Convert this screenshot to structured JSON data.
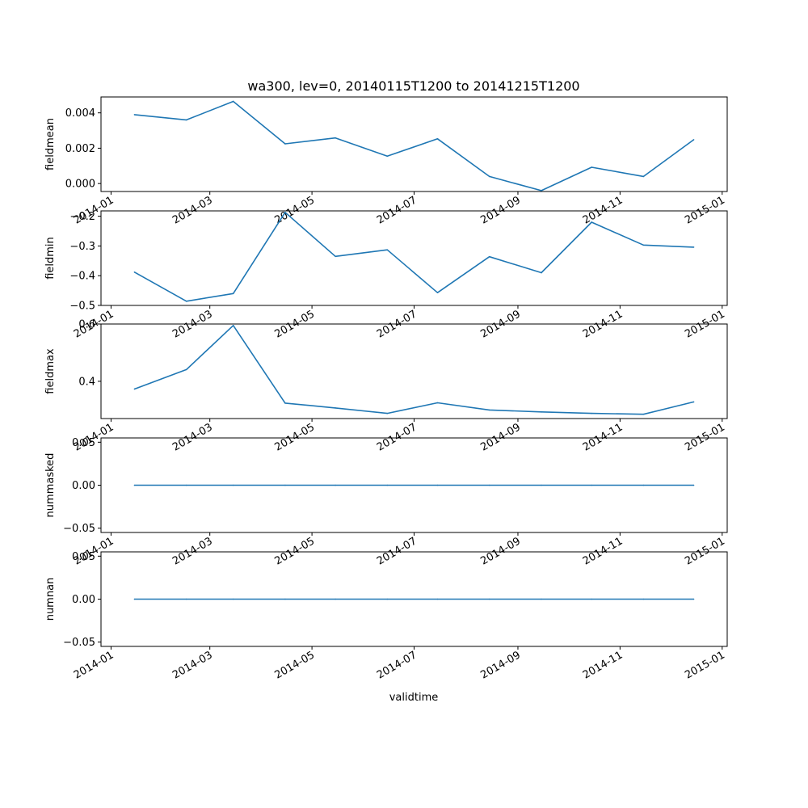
{
  "chart_data": {
    "type": "line",
    "title": "wa300, lev=0, 20140115T1200 to 20141215T1200",
    "xlabel": "validtime",
    "x_tick_labels": [
      "2014-01",
      "2014-03",
      "2014-05",
      "2014-07",
      "2014-09",
      "2014-11",
      "2015-01"
    ],
    "x": [
      "2014-01-15",
      "2014-02-15",
      "2014-03-15",
      "2014-04-15",
      "2014-05-15",
      "2014-06-15",
      "2014-07-15",
      "2014-08-15",
      "2014-09-15",
      "2014-10-15",
      "2014-11-15",
      "2014-12-15"
    ],
    "xlim": [
      "2013-12-26",
      "2015-01-04"
    ],
    "line_color": "#1f77b4",
    "grid": false,
    "panels": [
      {
        "ylabel": "fieldmean",
        "ylim": [
          -0.00045,
          0.0049
        ],
        "yticks": [
          "0.000",
          "0.002",
          "0.004"
        ],
        "ytick_values": [
          0,
          0.002,
          0.004
        ],
        "values": [
          0.0039,
          0.0036,
          0.00465,
          0.00225,
          0.00258,
          0.00155,
          0.00253,
          0.0004,
          -0.0004,
          0.00092,
          0.0004,
          0.00248
        ]
      },
      {
        "ylabel": "fieldmin",
        "ylim": [
          -0.5,
          -0.182
        ],
        "yticks": [
          "−0.5",
          "−0.4",
          "−0.3",
          "−0.2"
        ],
        "ytick_values": [
          -0.5,
          -0.4,
          -0.3,
          -0.2
        ],
        "values": [
          -0.388,
          -0.486,
          -0.46,
          -0.187,
          -0.335,
          -0.313,
          -0.457,
          -0.336,
          -0.39,
          -0.22,
          -0.297,
          -0.304
        ]
      },
      {
        "ylabel": "fieldmax",
        "ylim": [
          0.27,
          0.6
        ],
        "yticks": [
          "0.4",
          "0.6"
        ],
        "ytick_values": [
          0.4,
          0.6
        ],
        "values": [
          0.373,
          0.441,
          0.595,
          0.324,
          0.307,
          0.288,
          0.325,
          0.3,
          0.293,
          0.288,
          0.285,
          0.328
        ]
      },
      {
        "ylabel": "nummasked",
        "ylim": [
          -0.055,
          0.055
        ],
        "yticks": [
          "−0.05",
          "0.00",
          "0.05"
        ],
        "ytick_values": [
          -0.05,
          0,
          0.05
        ],
        "values": [
          0,
          0,
          0,
          0,
          0,
          0,
          0,
          0,
          0,
          0,
          0,
          0
        ]
      },
      {
        "ylabel": "numnan",
        "ylim": [
          -0.055,
          0.055
        ],
        "yticks": [
          "−0.05",
          "0.00",
          "0.05"
        ],
        "ytick_values": [
          -0.05,
          0,
          0.05
        ],
        "values": [
          0,
          0,
          0,
          0,
          0,
          0,
          0,
          0,
          0,
          0,
          0,
          0
        ]
      }
    ]
  }
}
